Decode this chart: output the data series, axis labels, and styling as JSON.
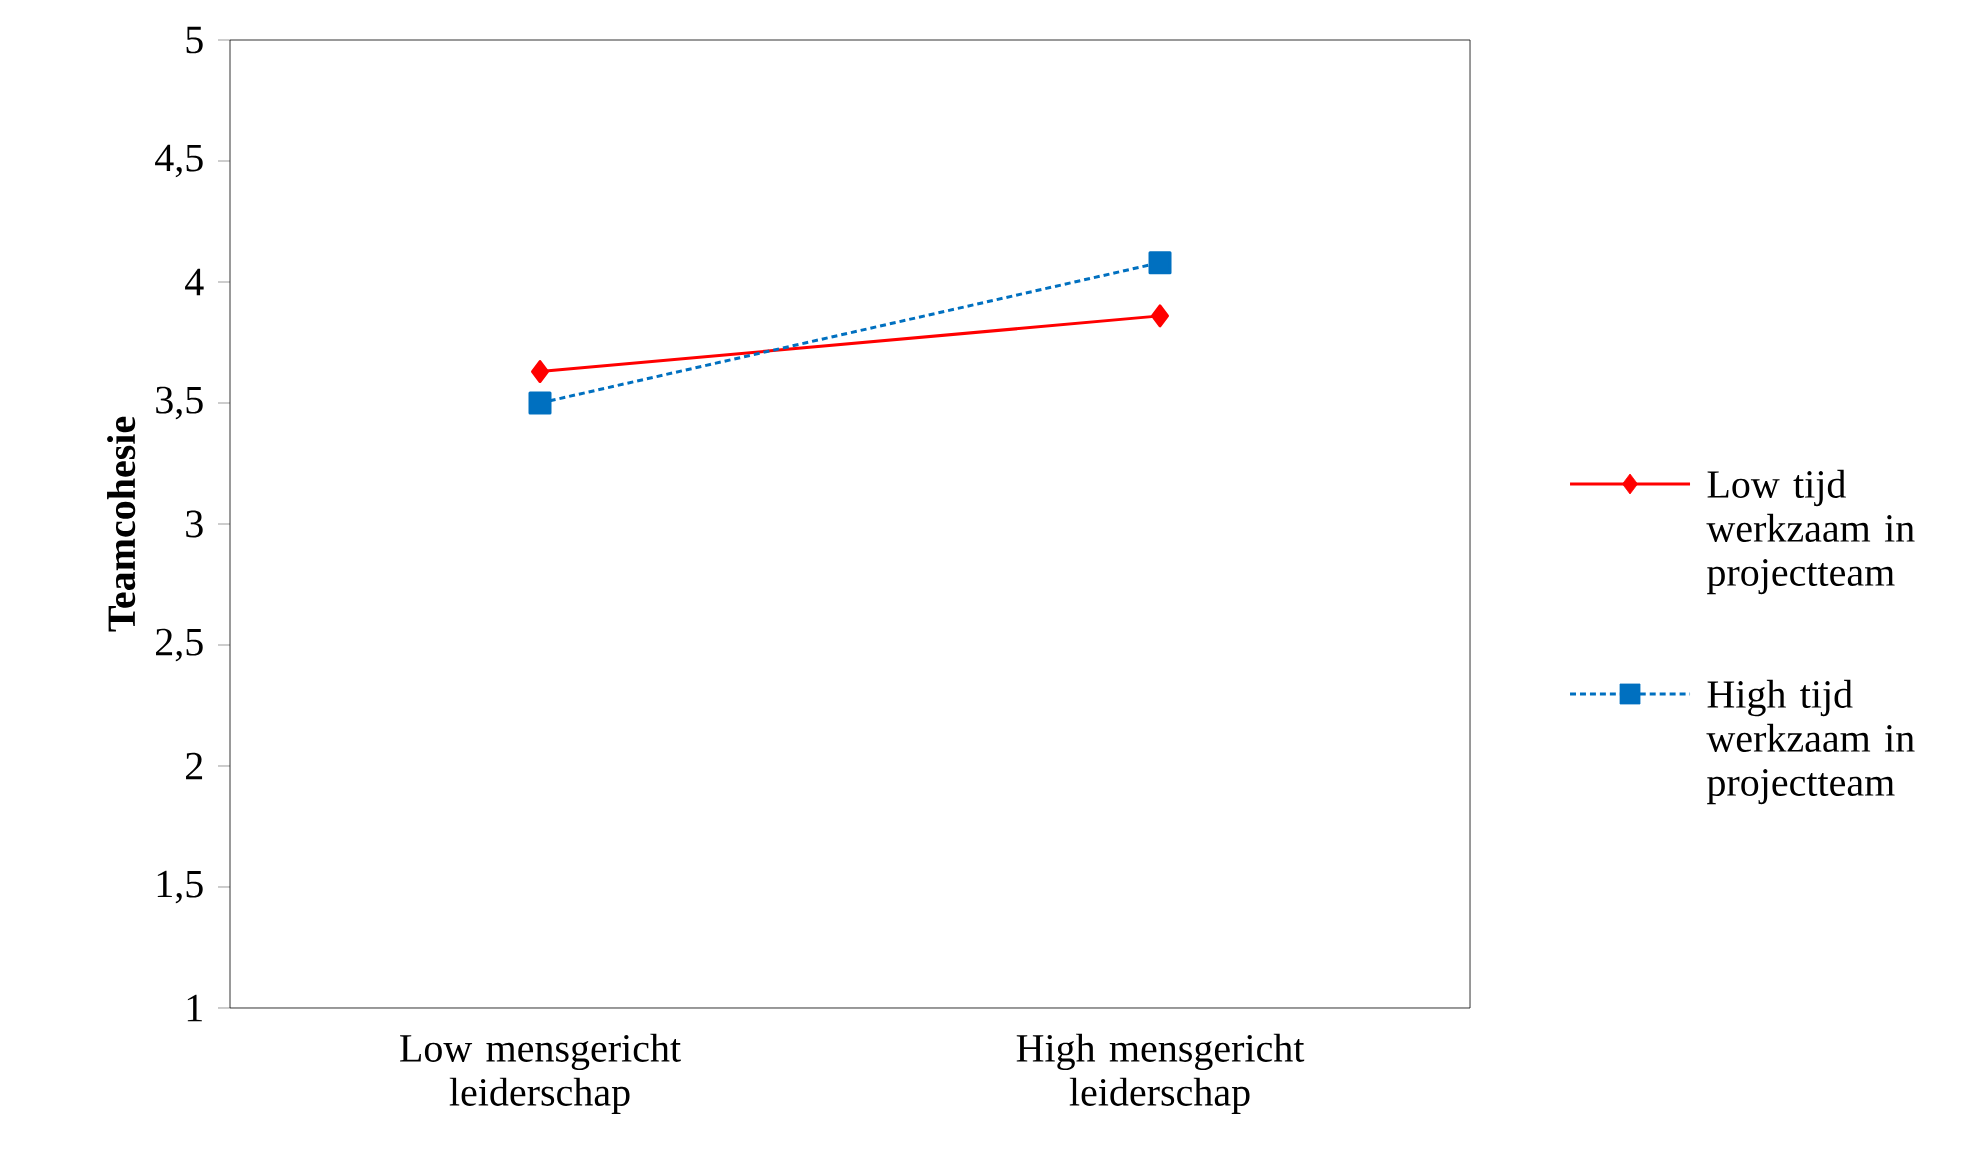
{
  "chart_data": {
    "type": "line",
    "ylabel": "Teamcohesie",
    "categories": [
      "Low mensgericht leiderschap",
      "High mensgericht leiderschap"
    ],
    "series": [
      {
        "name": "Low tijd werkzaam in projectteam",
        "color": "#ff0000",
        "values": [
          3.63,
          3.86
        ],
        "marker": "diamond",
        "line_style": "solid"
      },
      {
        "name": "High tijd werkzaam in projectteam",
        "color": "#0070c0",
        "values": [
          3.5,
          4.08
        ],
        "marker": "square",
        "line_style": "dashed"
      }
    ],
    "ylim": [
      1,
      5
    ],
    "yticks": [
      1,
      {
        "value": 1.5,
        "label": "1,5"
      },
      2,
      {
        "value": 2.5,
        "label": "2,5"
      },
      3,
      {
        "value": 3.5,
        "label": "3,5"
      },
      4,
      {
        "value": 4.5,
        "label": "4,5"
      },
      5
    ],
    "grid": false,
    "legend": "right"
  }
}
